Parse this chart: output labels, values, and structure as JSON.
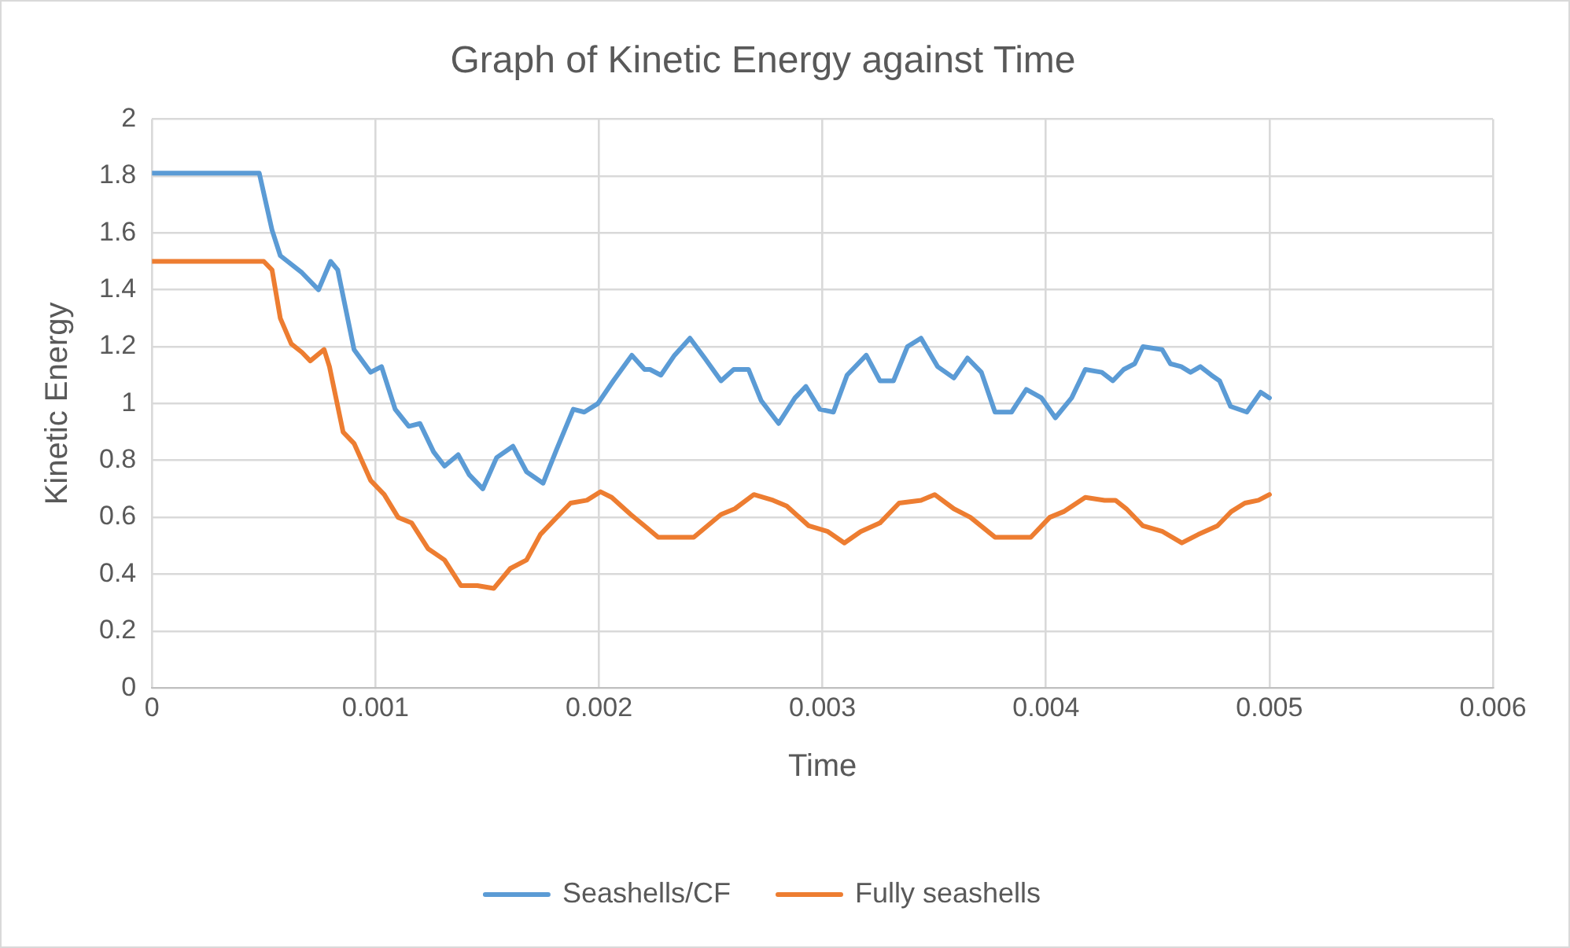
{
  "chart_data": {
    "type": "line",
    "title": "Graph of Kinetic Energy against Time",
    "xlabel": "Time",
    "ylabel": "Kinetic Energy",
    "xlim": [
      0,
      0.006
    ],
    "xticks": [
      0,
      0.001,
      0.002,
      0.003,
      0.004,
      0.005,
      0.006
    ],
    "ylim": [
      0,
      2
    ],
    "yticks": [
      0,
      0.2,
      0.4,
      0.6,
      0.8,
      1,
      1.2,
      1.4,
      1.6,
      1.8,
      2
    ],
    "grid": true,
    "legend": "bottom",
    "marker": "none",
    "line_style": "solid",
    "series": [
      {
        "name": "Seashells/CF",
        "color": "#5b9bd5",
        "x": [
          0,
          0.00048,
          0.000537,
          0.000574,
          0.000671,
          0.000745,
          0.000799,
          0.000831,
          0.000904,
          0.000978,
          0.001027,
          0.001088,
          0.001149,
          0.001199,
          0.00126,
          0.001309,
          0.00137,
          0.001419,
          0.00148,
          0.001542,
          0.001615,
          0.001676,
          0.00175,
          0.001811,
          0.001885,
          0.001934,
          0.001995,
          0.002064,
          0.002147,
          0.002204,
          0.002228,
          0.002277,
          0.002338,
          0.002407,
          0.002473,
          0.002546,
          0.002603,
          0.002669,
          0.002726,
          0.002804,
          0.002877,
          0.002926,
          0.002988,
          0.003049,
          0.00311,
          0.003196,
          0.003257,
          0.003318,
          0.00338,
          0.003441,
          0.003515,
          0.003588,
          0.003649,
          0.003711,
          0.003772,
          0.003846,
          0.003912,
          0.00398,
          0.004042,
          0.004115,
          0.004176,
          0.00425,
          0.004299,
          0.004348,
          0.004397,
          0.004434,
          0.00452,
          0.004557,
          0.004605,
          0.004647,
          0.004691,
          0.00474,
          0.004777,
          0.004826,
          0.004899,
          0.004961,
          0.005
        ],
        "values": [
          1.81,
          1.81,
          1.61,
          1.52,
          1.46,
          1.4,
          1.5,
          1.47,
          1.19,
          1.11,
          1.13,
          0.98,
          0.92,
          0.93,
          0.83,
          0.78,
          0.82,
          0.75,
          0.7,
          0.81,
          0.85,
          0.76,
          0.72,
          0.84,
          0.98,
          0.97,
          1,
          1.08,
          1.17,
          1.12,
          1.12,
          1.1,
          1.17,
          1.23,
          1.16,
          1.08,
          1.12,
          1.12,
          1.01,
          0.93,
          1.02,
          1.06,
          0.98,
          0.97,
          1.1,
          1.17,
          1.08,
          1.08,
          1.2,
          1.23,
          1.13,
          1.09,
          1.16,
          1.11,
          0.97,
          0.97,
          1.05,
          1.02,
          0.95,
          1.02,
          1.12,
          1.11,
          1.08,
          1.12,
          1.14,
          1.2,
          1.19,
          1.14,
          1.13,
          1.11,
          1.13,
          1.1,
          1.08,
          0.99,
          0.97,
          1.04,
          1.02
        ]
      },
      {
        "name": "Fully seashells",
        "color": "#ed7d31",
        "x": [
          0,
          0.0005,
          0.000537,
          0.000574,
          0.000623,
          0.000671,
          0.000708,
          0.00077,
          0.000794,
          0.000855,
          0.000904,
          0.000978,
          0.001039,
          0.001101,
          0.001162,
          0.001235,
          0.001309,
          0.001382,
          0.001456,
          0.001529,
          0.001603,
          0.001676,
          0.001738,
          0.001811,
          0.001873,
          0.001946,
          0.002007,
          0.002057,
          0.002142,
          0.002204,
          0.002265,
          0.002338,
          0.002424,
          0.002485,
          0.002546,
          0.002608,
          0.002693,
          0.002779,
          0.00284,
          0.002939,
          0.003024,
          0.003098,
          0.003171,
          0.003257,
          0.003343,
          0.003441,
          0.003502,
          0.003588,
          0.003662,
          0.003772,
          0.003846,
          0.003932,
          0.004017,
          0.004079,
          0.004176,
          0.004262,
          0.004311,
          0.00436,
          0.004434,
          0.004522,
          0.004608,
          0.004682,
          0.004767,
          0.004829,
          0.00489,
          0.004951,
          0.005
        ],
        "values": [
          1.5,
          1.5,
          1.47,
          1.3,
          1.21,
          1.18,
          1.15,
          1.19,
          1.13,
          0.9,
          0.86,
          0.73,
          0.68,
          0.6,
          0.58,
          0.49,
          0.45,
          0.36,
          0.36,
          0.35,
          0.42,
          0.45,
          0.54,
          0.6,
          0.65,
          0.66,
          0.69,
          0.67,
          0.61,
          0.57,
          0.53,
          0.53,
          0.53,
          0.57,
          0.61,
          0.63,
          0.68,
          0.66,
          0.64,
          0.57,
          0.55,
          0.51,
          0.55,
          0.58,
          0.65,
          0.66,
          0.68,
          0.63,
          0.6,
          0.53,
          0.53,
          0.53,
          0.6,
          0.62,
          0.67,
          0.66,
          0.66,
          0.63,
          0.57,
          0.55,
          0.51,
          0.54,
          0.57,
          0.62,
          0.65,
          0.66,
          0.68
        ]
      }
    ]
  }
}
